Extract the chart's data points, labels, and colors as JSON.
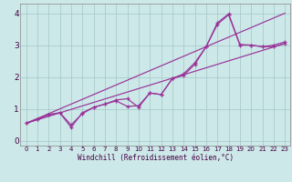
{
  "xlabel": "Windchill (Refroidissement éolien,°C)",
  "bg_color": "#cce8e8",
  "grid_color": "#aacccc",
  "line_color": "#993399",
  "xlim": [
    -0.5,
    23.5
  ],
  "ylim": [
    -0.15,
    4.3
  ],
  "xticks": [
    0,
    1,
    2,
    3,
    4,
    5,
    6,
    7,
    8,
    9,
    10,
    11,
    12,
    13,
    14,
    15,
    16,
    17,
    18,
    19,
    20,
    21,
    22,
    23
  ],
  "yticks": [
    0,
    1,
    2,
    3,
    4
  ],
  "line1_x": [
    0,
    1,
    2,
    3,
    4,
    5,
    6,
    7,
    8,
    9,
    10,
    11,
    12,
    13,
    14,
    15,
    16,
    17,
    18,
    19,
    20,
    21,
    22,
    23
  ],
  "line1_y": [
    0.55,
    0.68,
    0.82,
    0.88,
    0.5,
    0.85,
    1.05,
    1.15,
    1.25,
    1.08,
    1.1,
    1.5,
    1.45,
    1.95,
    2.05,
    2.4,
    2.95,
    3.65,
    3.95,
    3.0,
    3.0,
    2.95,
    2.95,
    3.05
  ],
  "line2_x": [
    0,
    1,
    2,
    3,
    4,
    5,
    6,
    7,
    8,
    9,
    10,
    11,
    12,
    13,
    14,
    15,
    16,
    17,
    18,
    19,
    20,
    21,
    22,
    23
  ],
  "line2_y": [
    0.55,
    0.68,
    0.82,
    0.88,
    0.42,
    0.88,
    1.05,
    1.15,
    1.28,
    1.32,
    1.05,
    1.5,
    1.45,
    1.95,
    2.1,
    2.45,
    2.95,
    3.7,
    3.98,
    3.02,
    3.0,
    2.95,
    3.0,
    3.1
  ],
  "line3_x": [
    0,
    23
  ],
  "line3_y": [
    0.55,
    3.05
  ],
  "line4_x": [
    0,
    23
  ],
  "line4_y": [
    0.55,
    4.0
  ]
}
